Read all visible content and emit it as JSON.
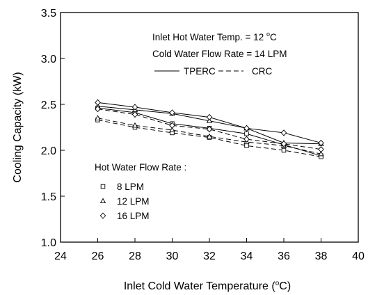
{
  "chart_data": {
    "type": "line",
    "title": "",
    "xlabel": "Inlet Cold Water Temperature (",
    "xlabel_unit_sup": "o",
    "xlabel_unit_tail": "C)",
    "ylabel": "Cooling Capacity (kW)",
    "xlim": [
      24,
      40
    ],
    "ylim": [
      1.0,
      3.5
    ],
    "x_ticks": [
      "24",
      "26",
      "28",
      "30",
      "32",
      "34",
      "36",
      "38",
      "40"
    ],
    "y_ticks": [
      "1.0",
      "1.5",
      "2.0",
      "2.5",
      "3.0",
      "3.5"
    ],
    "grid": false,
    "annotations": {
      "line1": "Inlet Hot Water Temp. = 12 ",
      "line1_sup": "o",
      "line1_tail": "C",
      "line2": "Cold Water Flow Rate  = 14 LPM"
    },
    "line_legend": {
      "solid": "TPERC",
      "dashed": "CRC"
    },
    "marker_legend": {
      "title": "Hot Water Flow Rate :",
      "items": [
        "8 LPM",
        "12 LPM",
        "16 LPM"
      ]
    },
    "x": [
      26,
      28,
      30,
      32,
      34,
      36,
      38
    ],
    "series": [
      {
        "name": "8 LPM",
        "model": "TPERC",
        "marker": "square",
        "line": "solid",
        "values": [
          2.46,
          2.41,
          2.29,
          2.24,
          2.18,
          2.06,
          1.94
        ]
      },
      {
        "name": "8 LPM",
        "model": "CRC",
        "marker": "square",
        "line": "dashed",
        "values": [
          2.33,
          2.25,
          2.19,
          2.14,
          2.05,
          2.0,
          1.93
        ]
      },
      {
        "name": "12 LPM",
        "model": "TPERC",
        "marker": "triangle",
        "line": "solid",
        "values": [
          2.48,
          2.44,
          2.4,
          2.32,
          2.24,
          2.08,
          2.07
        ]
      },
      {
        "name": "12 LPM",
        "model": "CRC",
        "marker": "triangle",
        "line": "dashed",
        "values": [
          2.35,
          2.27,
          2.22,
          2.15,
          2.09,
          2.05,
          1.96
        ]
      },
      {
        "name": "16 LPM",
        "model": "TPERC",
        "marker": "diamond",
        "line": "solid",
        "values": [
          2.52,
          2.47,
          2.41,
          2.36,
          2.24,
          2.19,
          2.08
        ]
      },
      {
        "name": "16 LPM",
        "model": "CRC",
        "marker": "diamond",
        "line": "dashed",
        "values": [
          2.45,
          2.39,
          2.27,
          2.23,
          2.12,
          2.07,
          2.01
        ]
      }
    ]
  }
}
